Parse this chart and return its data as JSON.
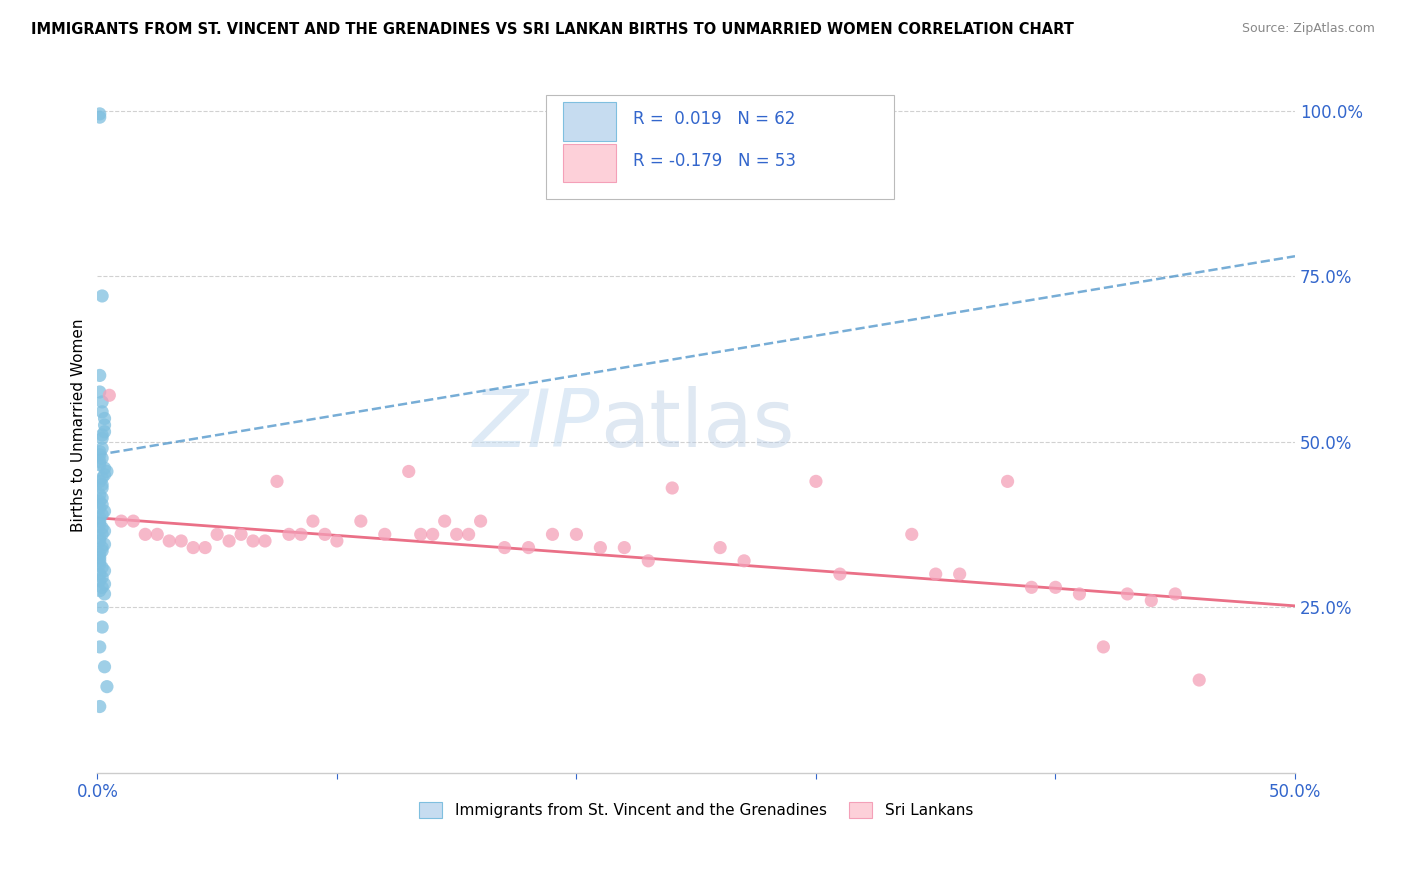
{
  "title": "IMMIGRANTS FROM ST. VINCENT AND THE GRENADINES VS SRI LANKAN BIRTHS TO UNMARRIED WOMEN CORRELATION CHART",
  "source": "Source: ZipAtlas.com",
  "ylabel": "Births to Unmarried Women",
  "blue_color": "#7fbfdf",
  "pink_color": "#f4a0b8",
  "blue_line_color": "#5599cc",
  "pink_line_color": "#e8607a",
  "watermark_zip": "ZIP",
  "watermark_atlas": "atlas",
  "legend1": "Immigrants from St. Vincent and the Grenadines",
  "legend2": "Sri Lankans",
  "blue_R_text": "R =  0.019",
  "blue_N_text": "N = 62",
  "pink_R_text": "R = -0.179",
  "pink_N_text": "N = 53",
  "blue_line_x0": 0.0,
  "blue_line_y0": 0.48,
  "blue_line_x1": 0.5,
  "blue_line_y1": 0.78,
  "pink_line_x0": 0.0,
  "pink_line_y0": 0.385,
  "pink_line_x1": 0.5,
  "pink_line_y1": 0.252,
  "xmin": 0.0,
  "xmax": 0.5,
  "ymin": 0.0,
  "ymax": 1.05,
  "blue_scatter_x": [
    0.001,
    0.001,
    0.002,
    0.001,
    0.001,
    0.002,
    0.002,
    0.003,
    0.003,
    0.003,
    0.002,
    0.002,
    0.002,
    0.001,
    0.001,
    0.002,
    0.001,
    0.001,
    0.003,
    0.004,
    0.003,
    0.002,
    0.001,
    0.002,
    0.002,
    0.001,
    0.002,
    0.001,
    0.002,
    0.001,
    0.003,
    0.002,
    0.001,
    0.001,
    0.001,
    0.002,
    0.003,
    0.002,
    0.001,
    0.001,
    0.003,
    0.002,
    0.002,
    0.001,
    0.001,
    0.001,
    0.001,
    0.002,
    0.003,
    0.001,
    0.002,
    0.001,
    0.003,
    0.002,
    0.001,
    0.003,
    0.002,
    0.002,
    0.001,
    0.003,
    0.004,
    0.001
  ],
  "blue_scatter_y": [
    0.995,
    0.99,
    0.72,
    0.6,
    0.575,
    0.56,
    0.545,
    0.535,
    0.525,
    0.515,
    0.51,
    0.505,
    0.49,
    0.485,
    0.48,
    0.475,
    0.47,
    0.465,
    0.46,
    0.455,
    0.45,
    0.445,
    0.44,
    0.435,
    0.43,
    0.42,
    0.415,
    0.41,
    0.405,
    0.4,
    0.395,
    0.39,
    0.385,
    0.38,
    0.375,
    0.37,
    0.365,
    0.36,
    0.355,
    0.35,
    0.345,
    0.34,
    0.335,
    0.33,
    0.325,
    0.32,
    0.315,
    0.31,
    0.305,
    0.3,
    0.295,
    0.29,
    0.285,
    0.28,
    0.275,
    0.27,
    0.25,
    0.22,
    0.19,
    0.16,
    0.13,
    0.1
  ],
  "pink_scatter_x": [
    0.005,
    0.01,
    0.015,
    0.02,
    0.025,
    0.03,
    0.035,
    0.04,
    0.045,
    0.05,
    0.055,
    0.06,
    0.065,
    0.07,
    0.075,
    0.08,
    0.085,
    0.09,
    0.095,
    0.1,
    0.11,
    0.12,
    0.13,
    0.135,
    0.14,
    0.145,
    0.15,
    0.155,
    0.16,
    0.17,
    0.18,
    0.19,
    0.2,
    0.21,
    0.22,
    0.23,
    0.24,
    0.26,
    0.27,
    0.3,
    0.31,
    0.34,
    0.35,
    0.36,
    0.38,
    0.39,
    0.4,
    0.41,
    0.42,
    0.43,
    0.44,
    0.45,
    0.46
  ],
  "pink_scatter_y": [
    0.57,
    0.38,
    0.38,
    0.36,
    0.36,
    0.35,
    0.35,
    0.34,
    0.34,
    0.36,
    0.35,
    0.36,
    0.35,
    0.35,
    0.44,
    0.36,
    0.36,
    0.38,
    0.36,
    0.35,
    0.38,
    0.36,
    0.455,
    0.36,
    0.36,
    0.38,
    0.36,
    0.36,
    0.38,
    0.34,
    0.34,
    0.36,
    0.36,
    0.34,
    0.34,
    0.32,
    0.43,
    0.34,
    0.32,
    0.44,
    0.3,
    0.36,
    0.3,
    0.3,
    0.44,
    0.28,
    0.28,
    0.27,
    0.19,
    0.27,
    0.26,
    0.27,
    0.14
  ]
}
